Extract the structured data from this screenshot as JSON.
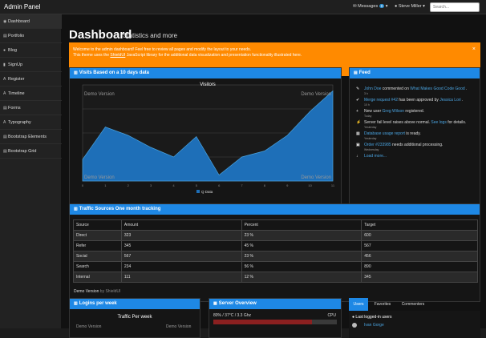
{
  "topbar": {
    "brand": "Admin Panel",
    "messages_label": "Messages",
    "messages_count": "0",
    "user_label": "Steve Miller",
    "search_placeholder": "Search..."
  },
  "sidebar": {
    "items": [
      {
        "icon": "dashboard-icon",
        "glyph": "◉",
        "label": "Dashboard",
        "active": true
      },
      {
        "icon": "portfolio-icon",
        "glyph": "▤",
        "label": "Portfolio"
      },
      {
        "icon": "blog-icon",
        "glyph": "●",
        "label": "Blog"
      },
      {
        "icon": "signup-icon",
        "glyph": "▮",
        "label": "SignUp"
      },
      {
        "icon": "register-icon",
        "glyph": "A",
        "label": "Register"
      },
      {
        "icon": "timeline-icon",
        "glyph": "A",
        "label": "Timeline"
      },
      {
        "icon": "forms-icon",
        "glyph": "▤",
        "label": "Forms"
      },
      {
        "icon": "typography-icon",
        "glyph": "A",
        "label": "Typography"
      },
      {
        "icon": "bootstrap-elements-icon",
        "glyph": "▤",
        "label": "Bootstrap Elements"
      },
      {
        "icon": "bootstrap-grid-icon",
        "glyph": "▤",
        "label": "Bootstrap Grid"
      }
    ]
  },
  "page": {
    "title": "Dashboard",
    "subtitle": "Statistics and more"
  },
  "alert": {
    "line1": "Welcome to the admin dashboard! Feel free to review all pages and modify the layout to your needs.",
    "line2_pre": "This theme uses the ",
    "line2_link": "ShieldUI",
    "line2_post": " JavaScript library for the additional data visualization and presentation functionality illustrated here.",
    "close": "×"
  },
  "visits": {
    "header": "Visits Based on a 10 days data",
    "chart_title": "Visitors",
    "watermark": "Demo Version",
    "legend": "Q Data"
  },
  "chart_data": {
    "type": "area",
    "title": "Visitors",
    "x": [
      0,
      1,
      2,
      3,
      4,
      5,
      6,
      7,
      8,
      9,
      10,
      11
    ],
    "series": [
      {
        "name": "Q Data",
        "values": [
          18,
          45,
          38,
          28,
          20,
          37,
          5,
          20,
          25,
          38,
          58,
          75
        ]
      }
    ],
    "xlim": [
      0,
      11
    ],
    "ylim": [
      0,
      80
    ],
    "grid": true,
    "legend_position": "bottom-center"
  },
  "feed": {
    "header": "Feed",
    "items": [
      {
        "icon": "comment-icon",
        "glyph": "✎",
        "parts": [
          [
            "blue",
            "John Doe"
          ],
          [
            "",
            "commented on "
          ],
          [
            "blue",
            "What Makes Good Code Good"
          ],
          [
            "",
            "."
          ]
        ],
        "time": "3 h"
      },
      {
        "icon": "check-icon",
        "glyph": "✔",
        "parts": [
          [
            "blue",
            "Merge request #42"
          ],
          [
            "",
            "has been approved by "
          ],
          [
            "blue",
            "Jessica Lori"
          ],
          [
            "",
            "."
          ]
        ],
        "time": "10 h"
      },
      {
        "icon": "plus-icon",
        "glyph": "+",
        "parts": [
          [
            "",
            "New user "
          ],
          [
            "blue",
            "Greg Wilson"
          ],
          [
            "",
            "registered."
          ]
        ],
        "time": "Today"
      },
      {
        "icon": "bolt-icon",
        "glyph": "⚡",
        "parts": [
          [
            "",
            "Server fail level raises above normal. "
          ],
          [
            "blue",
            "See logs"
          ],
          [
            "",
            "for details."
          ]
        ],
        "time": "Yesterday"
      },
      {
        "icon": "database-icon",
        "glyph": "▦",
        "parts": [
          [
            "blue",
            "Database usage report"
          ],
          [
            "",
            "is ready."
          ]
        ],
        "time": "Yesterday"
      },
      {
        "icon": "cart-icon",
        "glyph": "▣",
        "parts": [
          [
            "blue",
            "Order #233985"
          ],
          [
            "",
            "needs additional processing."
          ]
        ],
        "time": "Wednesday"
      },
      {
        "icon": "arrow-down-icon",
        "glyph": "↓",
        "parts": [
          [
            "blue",
            "Load more..."
          ]
        ],
        "time": ""
      }
    ]
  },
  "traffic": {
    "header": "Traffic Sources One month tracking",
    "columns": [
      "Source",
      "Amount",
      "Percent",
      "Target"
    ],
    "rows": [
      [
        "Direct",
        "323",
        "23 %",
        "600"
      ],
      [
        "Refer",
        "345",
        "45 %",
        "567"
      ],
      [
        "Social",
        "567",
        "23 %",
        "456"
      ],
      [
        "Search",
        "234",
        "56 %",
        "890"
      ],
      [
        "Internal",
        "111",
        "12 %",
        "345"
      ]
    ],
    "footer": "Demo Version",
    "footer_by": "by ShieldUI"
  },
  "logins": {
    "header": "Logins per week",
    "chart_title": "Traffic Per week",
    "watermark": "Demo Version"
  },
  "server": {
    "header": "Server Overview",
    "stat_text": "80% / 37°C / 3.3 Ghz",
    "cpu_label": "CPU",
    "cpu_percent": 80
  },
  "tabs": {
    "items": [
      "Users",
      "Favorites",
      "Commenters"
    ],
    "section_title": "Last logged-in users",
    "first_user": "Ivan Gorge"
  }
}
